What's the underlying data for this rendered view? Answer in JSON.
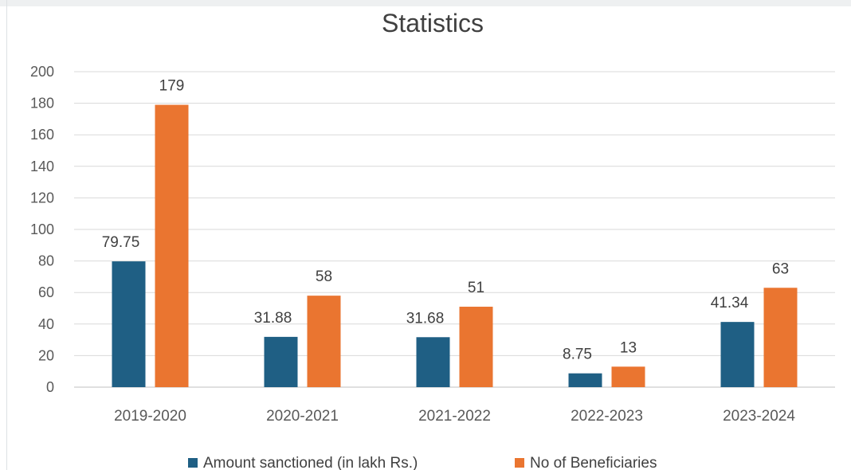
{
  "chart_data": {
    "type": "bar",
    "title": "Statistics",
    "xlabel": "",
    "ylabel": "",
    "ylim": [
      0,
      200
    ],
    "yticks": [
      0,
      20,
      40,
      60,
      80,
      100,
      120,
      140,
      160,
      180,
      200
    ],
    "grid": true,
    "legend_position": "bottom",
    "categories": [
      "2019-2020",
      "2020-2021",
      "2021-2022",
      "2022-2023",
      "2023-2024"
    ],
    "series": [
      {
        "name": "Amount sanctioned (in lakh Rs.)",
        "color": "#1f5f84",
        "values": [
          79.75,
          31.88,
          31.68,
          8.75,
          41.34
        ],
        "labels": [
          "79.75",
          "31.88",
          "31.68",
          "8.75",
          "41.34"
        ]
      },
      {
        "name": "No of Beneficiaries",
        "color": "#ea7530",
        "values": [
          179,
          58,
          51,
          13,
          63
        ],
        "labels": [
          "179",
          "58",
          "51",
          "13",
          "63"
        ]
      }
    ]
  }
}
